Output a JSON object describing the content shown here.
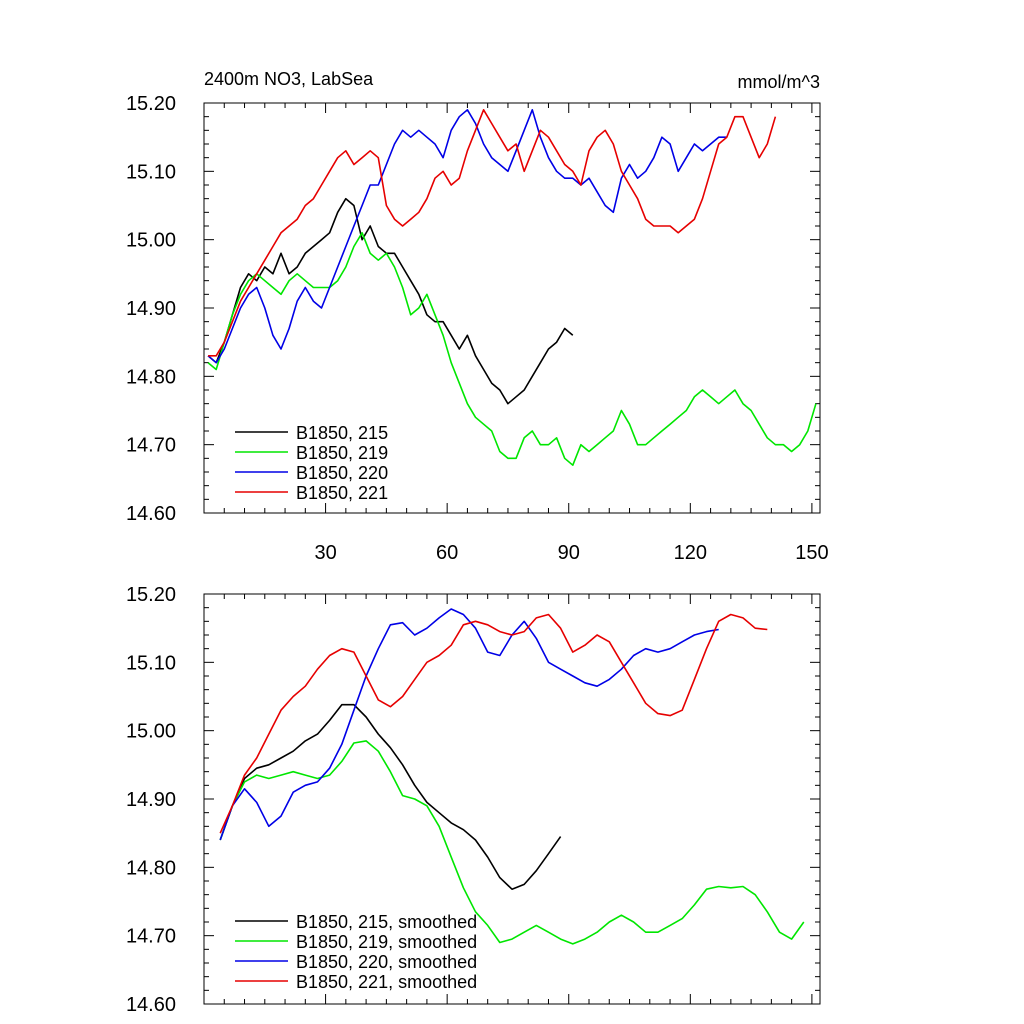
{
  "chart_data": [
    {
      "type": "line",
      "title": "2400m NO3, LabSea",
      "units_label": "mmol/m^3",
      "xlim": [
        0,
        152
      ],
      "ylim": [
        14.6,
        15.2
      ],
      "x_ticks": [
        30,
        60,
        90,
        120,
        150
      ],
      "x_tick_labels": [
        "30",
        "60",
        "90",
        "120",
        "150"
      ],
      "y_ticks": [
        14.6,
        14.7,
        14.8,
        14.9,
        15.0,
        15.1,
        15.2
      ],
      "y_tick_labels": [
        "14.60",
        "14.70",
        "14.80",
        "14.90",
        "15.00",
        "15.10",
        "15.20"
      ],
      "legend_position": "bottom-left",
      "series": [
        {
          "name": "B1850, 215",
          "color": "#000000",
          "x": [
            1,
            3,
            5,
            7,
            9,
            11,
            13,
            15,
            17,
            19,
            21,
            23,
            25,
            27,
            29,
            31,
            33,
            35,
            37,
            39,
            41,
            43,
            45,
            47,
            49,
            51,
            53,
            55,
            57,
            59,
            61,
            63,
            65,
            67,
            69,
            71,
            73,
            75,
            77,
            79,
            81,
            83,
            85,
            87,
            89,
            91
          ],
          "y": [
            14.83,
            14.82,
            14.85,
            14.89,
            14.93,
            14.95,
            14.94,
            14.96,
            14.95,
            14.98,
            14.95,
            14.96,
            14.98,
            14.99,
            15.0,
            15.01,
            15.04,
            15.06,
            15.05,
            15.0,
            15.02,
            14.99,
            14.98,
            14.98,
            14.96,
            14.94,
            14.92,
            14.89,
            14.88,
            14.88,
            14.86,
            14.84,
            14.86,
            14.83,
            14.81,
            14.79,
            14.78,
            14.76,
            14.77,
            14.78,
            14.8,
            14.82,
            14.84,
            14.85,
            14.87,
            14.86
          ]
        },
        {
          "name": "B1850, 219",
          "color": "#00e600",
          "x": [
            1,
            3,
            5,
            7,
            9,
            11,
            13,
            15,
            17,
            19,
            21,
            23,
            25,
            27,
            29,
            31,
            33,
            35,
            37,
            39,
            41,
            43,
            45,
            47,
            49,
            51,
            53,
            55,
            57,
            59,
            61,
            63,
            65,
            67,
            69,
            71,
            73,
            75,
            77,
            79,
            81,
            83,
            85,
            87,
            89,
            91,
            93,
            95,
            97,
            99,
            101,
            103,
            105,
            107,
            109,
            111,
            113,
            115,
            117,
            119,
            121,
            123,
            125,
            127,
            129,
            131,
            133,
            135,
            137,
            139,
            141,
            143,
            145,
            147,
            149,
            151
          ],
          "y": [
            14.82,
            14.81,
            14.85,
            14.89,
            14.92,
            14.94,
            14.95,
            14.94,
            14.93,
            14.92,
            14.94,
            14.95,
            14.94,
            14.93,
            14.93,
            14.93,
            14.94,
            14.96,
            14.99,
            15.01,
            14.98,
            14.97,
            14.98,
            14.96,
            14.93,
            14.89,
            14.9,
            14.92,
            14.89,
            14.86,
            14.82,
            14.79,
            14.76,
            14.74,
            14.73,
            14.72,
            14.69,
            14.68,
            14.68,
            14.71,
            14.72,
            14.7,
            14.7,
            14.71,
            14.68,
            14.67,
            14.7,
            14.69,
            14.7,
            14.71,
            14.72,
            14.75,
            14.73,
            14.7,
            14.7,
            14.71,
            14.72,
            14.73,
            14.74,
            14.75,
            14.77,
            14.78,
            14.77,
            14.76,
            14.77,
            14.78,
            14.76,
            14.75,
            14.73,
            14.71,
            14.7,
            14.7,
            14.69,
            14.7,
            14.72,
            14.76
          ]
        },
        {
          "name": "B1850, 220",
          "color": "#0000e6",
          "x": [
            1,
            3,
            5,
            7,
            9,
            11,
            13,
            15,
            17,
            19,
            21,
            23,
            25,
            27,
            29,
            31,
            33,
            35,
            37,
            39,
            41,
            43,
            45,
            47,
            49,
            51,
            53,
            55,
            57,
            59,
            61,
            63,
            65,
            67,
            69,
            71,
            73,
            75,
            77,
            79,
            81,
            83,
            85,
            87,
            89,
            91,
            93,
            95,
            97,
            99,
            101,
            103,
            105,
            107,
            109,
            111,
            113,
            115,
            117,
            119,
            121,
            123,
            125,
            127,
            129
          ],
          "y": [
            14.83,
            14.82,
            14.84,
            14.87,
            14.9,
            14.92,
            14.93,
            14.9,
            14.86,
            14.84,
            14.87,
            14.91,
            14.93,
            14.91,
            14.9,
            14.93,
            14.96,
            14.99,
            15.02,
            15.05,
            15.08,
            15.08,
            15.11,
            15.14,
            15.16,
            15.15,
            15.16,
            15.15,
            15.14,
            15.12,
            15.16,
            15.18,
            15.19,
            15.17,
            15.14,
            15.12,
            15.11,
            15.1,
            15.13,
            15.16,
            15.19,
            15.15,
            15.12,
            15.1,
            15.09,
            15.09,
            15.08,
            15.09,
            15.07,
            15.05,
            15.04,
            15.09,
            15.11,
            15.09,
            15.1,
            15.12,
            15.15,
            15.14,
            15.1,
            15.12,
            15.14,
            15.13,
            15.14,
            15.15,
            15.15
          ]
        },
        {
          "name": "B1850, 221",
          "color": "#e60000",
          "x": [
            1,
            3,
            5,
            7,
            9,
            11,
            13,
            15,
            17,
            19,
            21,
            23,
            25,
            27,
            29,
            31,
            33,
            35,
            37,
            39,
            41,
            43,
            45,
            47,
            49,
            51,
            53,
            55,
            57,
            59,
            61,
            63,
            65,
            67,
            69,
            71,
            73,
            75,
            77,
            79,
            81,
            83,
            85,
            87,
            89,
            91,
            93,
            95,
            97,
            99,
            101,
            103,
            105,
            107,
            109,
            111,
            113,
            115,
            117,
            119,
            121,
            123,
            125,
            127,
            129,
            131,
            133,
            135,
            137,
            139,
            141
          ],
          "y": [
            14.83,
            14.83,
            14.85,
            14.88,
            14.91,
            14.93,
            14.95,
            14.97,
            14.99,
            15.01,
            15.02,
            15.03,
            15.05,
            15.06,
            15.08,
            15.1,
            15.12,
            15.13,
            15.11,
            15.12,
            15.13,
            15.12,
            15.05,
            15.03,
            15.02,
            15.03,
            15.04,
            15.06,
            15.09,
            15.1,
            15.08,
            15.09,
            15.13,
            15.16,
            15.19,
            15.17,
            15.15,
            15.13,
            15.14,
            15.1,
            15.13,
            15.16,
            15.15,
            15.13,
            15.11,
            15.1,
            15.08,
            15.13,
            15.15,
            15.16,
            15.14,
            15.1,
            15.08,
            15.06,
            15.03,
            15.02,
            15.02,
            15.02,
            15.01,
            15.02,
            15.03,
            15.06,
            15.1,
            15.14,
            15.15,
            15.18,
            15.18,
            15.15,
            15.12,
            15.14,
            15.18
          ]
        }
      ]
    },
    {
      "type": "line",
      "title": "",
      "xlim": [
        0,
        152
      ],
      "ylim": [
        14.6,
        15.2
      ],
      "x_ticks": [
        30,
        60,
        90,
        120,
        150
      ],
      "x_tick_labels": [],
      "y_ticks": [
        14.6,
        14.7,
        14.8,
        14.9,
        15.0,
        15.1,
        15.2
      ],
      "y_tick_labels": [
        "14.60",
        "14.70",
        "14.80",
        "14.90",
        "15.00",
        "15.10",
        "15.20"
      ],
      "legend_position": "bottom-left",
      "series": [
        {
          "name": "B1850, 215, smoothed",
          "color": "#000000",
          "x": [
            4,
            7,
            10,
            13,
            16,
            19,
            22,
            25,
            28,
            31,
            34,
            37,
            40,
            43,
            46,
            49,
            52,
            55,
            58,
            61,
            64,
            67,
            70,
            73,
            76,
            79,
            82,
            85,
            88
          ],
          "y": [
            14.84,
            14.89,
            14.93,
            14.945,
            14.95,
            14.96,
            14.97,
            14.985,
            14.995,
            15.015,
            15.038,
            15.038,
            15.02,
            14.995,
            14.975,
            14.95,
            14.92,
            14.895,
            14.88,
            14.865,
            14.855,
            14.84,
            14.815,
            14.785,
            14.768,
            14.775,
            14.795,
            14.82,
            14.845
          ]
        },
        {
          "name": "B1850, 219, smoothed",
          "color": "#00e600",
          "x": [
            4,
            7,
            10,
            13,
            16,
            19,
            22,
            25,
            28,
            31,
            34,
            37,
            40,
            43,
            46,
            49,
            52,
            55,
            58,
            61,
            64,
            67,
            70,
            73,
            76,
            79,
            82,
            85,
            88,
            91,
            94,
            97,
            100,
            103,
            106,
            109,
            112,
            115,
            118,
            121,
            124,
            127,
            130,
            133,
            136,
            139,
            142,
            145,
            148
          ],
          "y": [
            14.84,
            14.89,
            14.925,
            14.935,
            14.93,
            14.935,
            14.94,
            14.935,
            14.93,
            14.935,
            14.955,
            14.982,
            14.985,
            14.97,
            14.94,
            14.905,
            14.9,
            14.89,
            14.86,
            14.815,
            14.77,
            14.735,
            14.715,
            14.69,
            14.695,
            14.705,
            14.715,
            14.705,
            14.695,
            14.688,
            14.695,
            14.705,
            14.72,
            14.73,
            14.72,
            14.705,
            14.705,
            14.715,
            14.725,
            14.745,
            14.768,
            14.772,
            14.77,
            14.772,
            14.76,
            14.735,
            14.705,
            14.695,
            14.72
          ]
        },
        {
          "name": "B1850, 220, smoothed",
          "color": "#0000e6",
          "x": [
            4,
            7,
            10,
            13,
            16,
            19,
            22,
            25,
            28,
            31,
            34,
            37,
            40,
            43,
            46,
            49,
            52,
            55,
            58,
            61,
            64,
            67,
            70,
            73,
            76,
            79,
            82,
            85,
            88,
            91,
            94,
            97,
            100,
            103,
            106,
            109,
            112,
            115,
            118,
            121,
            124,
            127
          ],
          "y": [
            14.84,
            14.89,
            14.915,
            14.895,
            14.86,
            14.875,
            14.91,
            14.92,
            14.925,
            14.945,
            14.98,
            15.03,
            15.08,
            15.12,
            15.155,
            15.158,
            15.14,
            15.15,
            15.165,
            15.178,
            15.17,
            15.15,
            15.115,
            15.11,
            15.14,
            15.16,
            15.135,
            15.1,
            15.09,
            15.08,
            15.07,
            15.065,
            15.075,
            15.09,
            15.11,
            15.12,
            15.115,
            15.12,
            15.13,
            15.14,
            15.145,
            15.148
          ]
        },
        {
          "name": "B1850, 221, smoothed",
          "color": "#e60000",
          "x": [
            4,
            7,
            10,
            13,
            16,
            19,
            22,
            25,
            28,
            31,
            34,
            37,
            40,
            43,
            46,
            49,
            52,
            55,
            58,
            61,
            64,
            67,
            70,
            73,
            76,
            79,
            82,
            85,
            88,
            91,
            94,
            97,
            100,
            103,
            106,
            109,
            112,
            115,
            118,
            121,
            124,
            127,
            130,
            133,
            136,
            139
          ],
          "y": [
            14.85,
            14.89,
            14.935,
            14.96,
            14.995,
            15.03,
            15.05,
            15.065,
            15.09,
            15.11,
            15.12,
            15.115,
            15.08,
            15.045,
            15.035,
            15.05,
            15.075,
            15.1,
            15.11,
            15.125,
            15.155,
            15.16,
            15.155,
            15.145,
            15.14,
            15.145,
            15.165,
            15.17,
            15.15,
            15.115,
            15.125,
            15.14,
            15.13,
            15.1,
            15.07,
            15.04,
            15.025,
            15.022,
            15.03,
            15.075,
            15.12,
            15.16,
            15.17,
            15.165,
            15.15,
            15.148
          ]
        }
      ]
    }
  ]
}
